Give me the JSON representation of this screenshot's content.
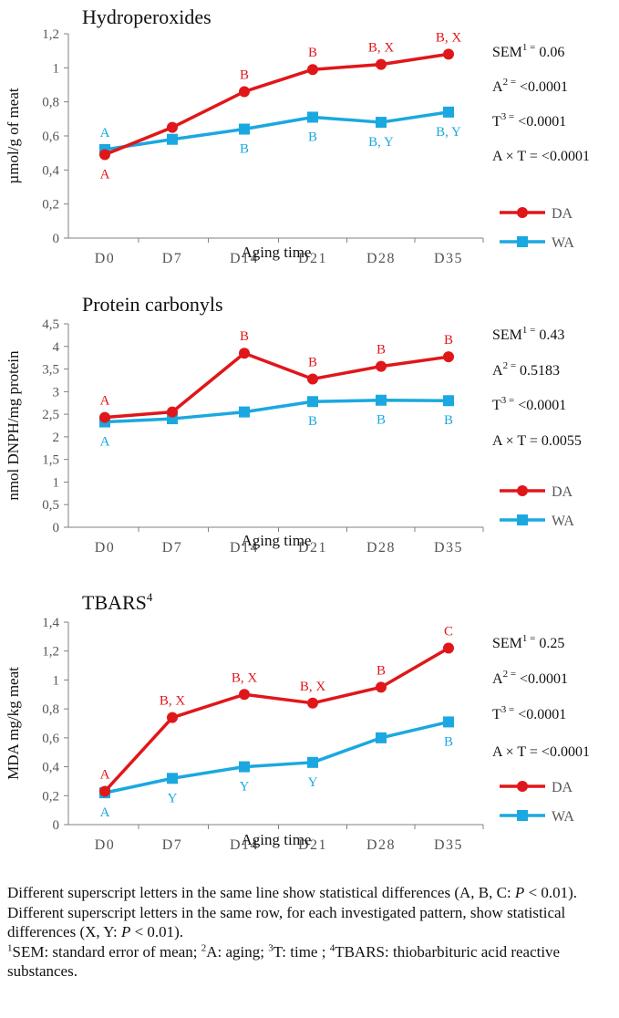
{
  "chart_data": [
    {
      "type": "line",
      "title": "Hydroperoxides",
      "xlabel": "Aging time",
      "ylabel": "µmol/g of meat",
      "categories": [
        "D0",
        "D7",
        "D14",
        "D21",
        "D28",
        "D35"
      ],
      "ylim": [
        0,
        1.2
      ],
      "yticks": [
        "0",
        "0,2",
        "0,4",
        "0,6",
        "0,8",
        "1",
        "1,2"
      ],
      "grid": false,
      "legend_position": "right",
      "series": [
        {
          "name": "DA",
          "color": "#e0171a",
          "marker": "circle",
          "values": [
            0.49,
            0.65,
            0.86,
            0.99,
            1.02,
            1.08
          ],
          "labels": [
            "A",
            "",
            "B",
            "B",
            "B, X",
            "B, X"
          ],
          "label_side": [
            "below",
            "",
            "above",
            "above",
            "above",
            "above"
          ]
        },
        {
          "name": "WA",
          "color": "#1ba8e0",
          "marker": "square",
          "values": [
            0.52,
            0.58,
            0.64,
            0.71,
            0.68,
            0.74
          ],
          "labels": [
            "A",
            "",
            "B",
            "B",
            "B, Y",
            "B, Y"
          ],
          "label_side": [
            "above",
            "",
            "below",
            "below",
            "below",
            "below"
          ]
        }
      ],
      "stats": [
        {
          "label": "SEM",
          "sup": "1 =",
          "value": " 0.06"
        },
        {
          "label": "A",
          "sup": "2 =",
          "value": " <0.0001"
        },
        {
          "label": "T",
          "sup": "3 =",
          "value": " <0.0001"
        },
        {
          "label": "A × T = <0.0001",
          "sup": "",
          "value": ""
        }
      ]
    },
    {
      "type": "line",
      "title": "Protein carbonyls",
      "xlabel": "Aging time",
      "ylabel": "nmol DNPH/mg protein",
      "categories": [
        "D0",
        "D7",
        "D14",
        "D21",
        "D28",
        "D35"
      ],
      "ylim": [
        0,
        4.5
      ],
      "yticks": [
        "0",
        "0,5",
        "1",
        "1,5",
        "2",
        "2,5",
        "3",
        "3,5",
        "4",
        "4,5"
      ],
      "grid": false,
      "legend_position": "right",
      "series": [
        {
          "name": "DA",
          "color": "#e0171a",
          "marker": "circle",
          "values": [
            2.43,
            2.55,
            3.85,
            3.28,
            3.56,
            3.77
          ],
          "labels": [
            "A",
            "",
            "B",
            "B",
            "B",
            "B"
          ],
          "label_side": [
            "above",
            "",
            "above",
            "above",
            "above",
            "above"
          ]
        },
        {
          "name": "WA",
          "color": "#1ba8e0",
          "marker": "square",
          "values": [
            2.33,
            2.4,
            2.55,
            2.78,
            2.81,
            2.8
          ],
          "labels": [
            "A",
            "",
            "",
            "B",
            "B",
            "B"
          ],
          "label_side": [
            "below",
            "",
            "",
            "below",
            "below",
            "below"
          ]
        }
      ],
      "stats": [
        {
          "label": "SEM",
          "sup": "1 =",
          "value": " 0.43"
        },
        {
          "label": "A",
          "sup": "2 =",
          "value": " 0.5183"
        },
        {
          "label": "T",
          "sup": "3 =",
          "value": " <0.0001"
        },
        {
          "label": "A × T = 0.0055",
          "sup": "",
          "value": ""
        }
      ]
    },
    {
      "type": "line",
      "title": "TBARS",
      "title_sup": "4",
      "xlabel": "Aging time",
      "ylabel": "MDA mg/kg meat",
      "categories": [
        "D0",
        "D7",
        "D14",
        "D21",
        "D28",
        "D35"
      ],
      "ylim": [
        0,
        1.4
      ],
      "yticks": [
        "0",
        "0,2",
        "0,4",
        "0,6",
        "0,8",
        "1",
        "1,2",
        "1,4"
      ],
      "grid": false,
      "legend_position": "right",
      "series": [
        {
          "name": "DA",
          "color": "#e0171a",
          "marker": "circle",
          "values": [
            0.23,
            0.74,
            0.9,
            0.84,
            0.95,
            1.22
          ],
          "labels": [
            "A",
            "B, X",
            "B, X",
            "B, X",
            "B",
            "C"
          ],
          "label_side": [
            "above",
            "above",
            "above",
            "above",
            "above",
            "above"
          ]
        },
        {
          "name": "WA",
          "color": "#1ba8e0",
          "marker": "square",
          "values": [
            0.22,
            0.32,
            0.4,
            0.43,
            0.6,
            0.71
          ],
          "labels": [
            "A",
            "Y",
            "Y",
            "Y",
            "",
            "B"
          ],
          "label_side": [
            "below",
            "below",
            "below",
            "below",
            "",
            "below"
          ]
        }
      ],
      "stats": [
        {
          "label": "SEM",
          "sup": "1 =",
          "value": " 0.25"
        },
        {
          "label": "A",
          "sup": "2 =",
          "value": " <0.0001"
        },
        {
          "label": "T",
          "sup": "3 =",
          "value": " <0.0001"
        },
        {
          "label": "A × T = <0.0001",
          "sup": "",
          "value": ""
        }
      ]
    }
  ],
  "footnote": {
    "line1": "Different superscript letters in the same line show statistical differences (A, B, C: ",
    "p_symbol": "P",
    "line1_end": " < 0.01).",
    "line2": "Different superscript letters in the same row, for each investigated pattern, show statistical differences (X, Y: ",
    "line2_end": " < 0.01).",
    "sup1": "1",
    "sem_def": "SEM: standard error of mean; ",
    "sup2": "2",
    "a_def": "A: aging; ",
    "sup3": "3",
    "t_def": "T: time ; ",
    "sup4": "4",
    "tbars_def": "TBARS: thiobarbituric acid reactive substances."
  }
}
